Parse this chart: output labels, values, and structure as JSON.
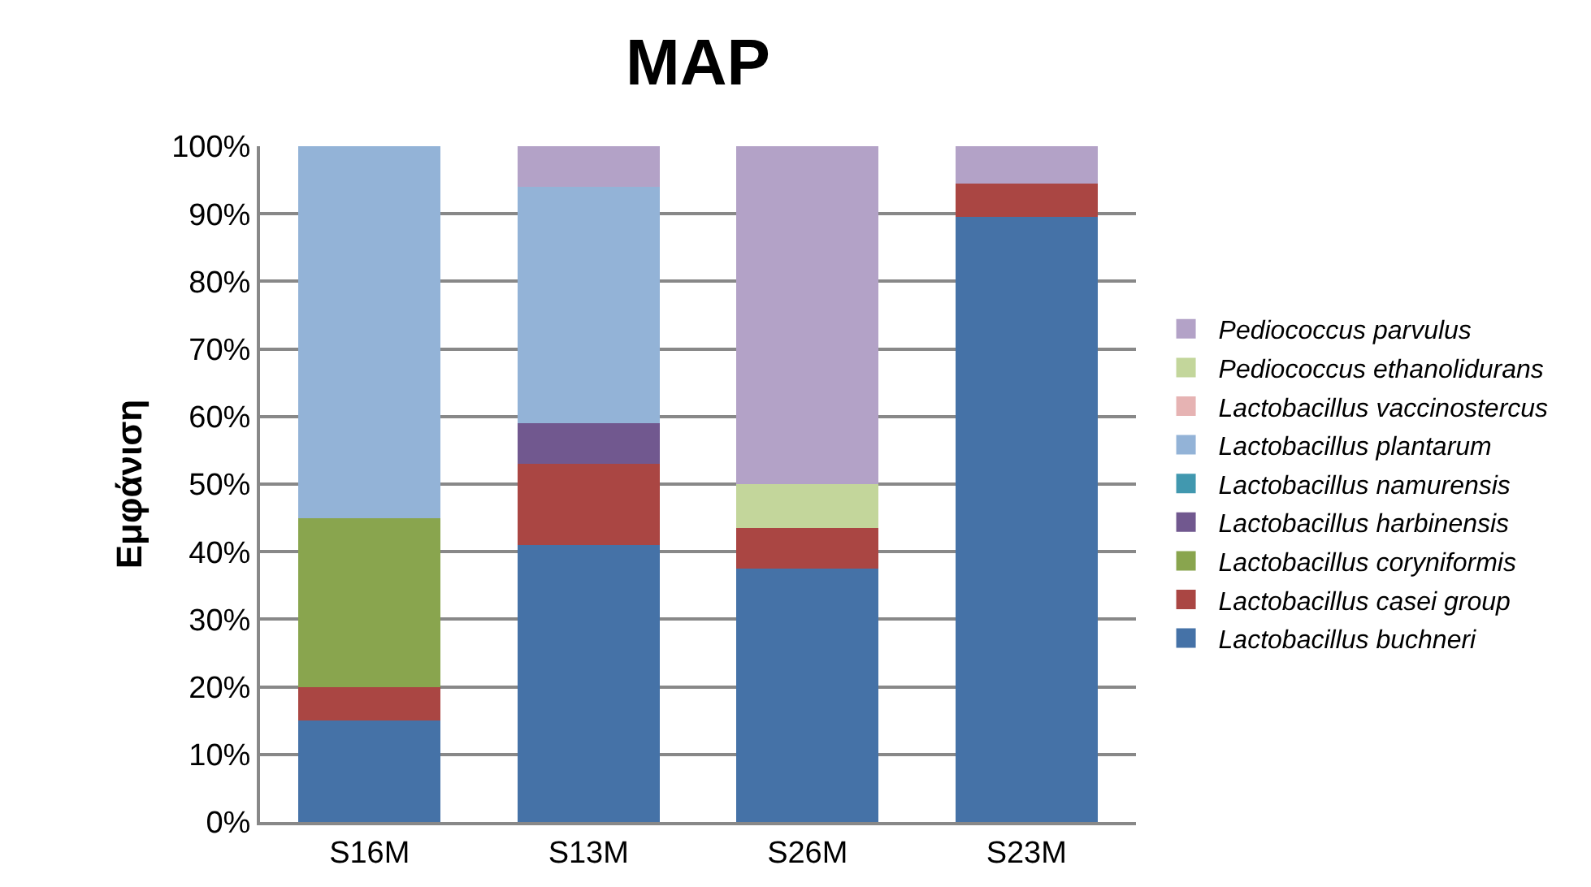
{
  "chart_data": {
    "type": "bar",
    "title": "MAP",
    "ylabel": "Εμφάνιση",
    "categories": [
      "S16M",
      "S13M",
      "S26M",
      "S23M"
    ],
    "stacked": true,
    "series": [
      {
        "name": "Lactobacillus buchneri",
        "color": "#4572a7",
        "values": [
          15,
          41,
          37.5,
          89.5
        ]
      },
      {
        "name": "Lactobacillus casei group",
        "color": "#aa4643",
        "values": [
          5,
          12,
          6,
          5
        ]
      },
      {
        "name": "Lactobacillus coryniformis",
        "color": "#89a54e",
        "values": [
          25,
          0,
          0,
          0
        ]
      },
      {
        "name": "Lactobacillus harbinensis",
        "color": "#71588f",
        "values": [
          0,
          6,
          0,
          0
        ]
      },
      {
        "name": "Lactobacillus namurensis",
        "color": "#4198af",
        "values": [
          0,
          0,
          0,
          0
        ]
      },
      {
        "name": "Lactobacillus plantarum",
        "color": "#93b3d7",
        "values": [
          55,
          35,
          0,
          0
        ]
      },
      {
        "name": "Lactobacillus vaccinostercus",
        "color": "#e6b3b3",
        "values": [
          0,
          0,
          0,
          0
        ]
      },
      {
        "name": "Pediococcus ethanolidurans",
        "color": "#c3d69b",
        "values": [
          0,
          0,
          6.5,
          0
        ]
      },
      {
        "name": "Pediococcus parvulus",
        "color": "#b3a2c7",
        "values": [
          0,
          6,
          50,
          5.5
        ]
      }
    ],
    "ylim": [
      0,
      100
    ],
    "yticks": [
      {
        "value": 0,
        "label": "0%"
      },
      {
        "value": 10,
        "label": "10%"
      },
      {
        "value": 20,
        "label": "20%"
      },
      {
        "value": 30,
        "label": "30%"
      },
      {
        "value": 40,
        "label": "40%"
      },
      {
        "value": 50,
        "label": "50%"
      },
      {
        "value": 60,
        "label": "60%"
      },
      {
        "value": 70,
        "label": "70%"
      },
      {
        "value": 80,
        "label": "80%"
      },
      {
        "value": 90,
        "label": "90%"
      },
      {
        "value": 100,
        "label": "100%"
      }
    ],
    "grid": "y",
    "legend": "right"
  }
}
